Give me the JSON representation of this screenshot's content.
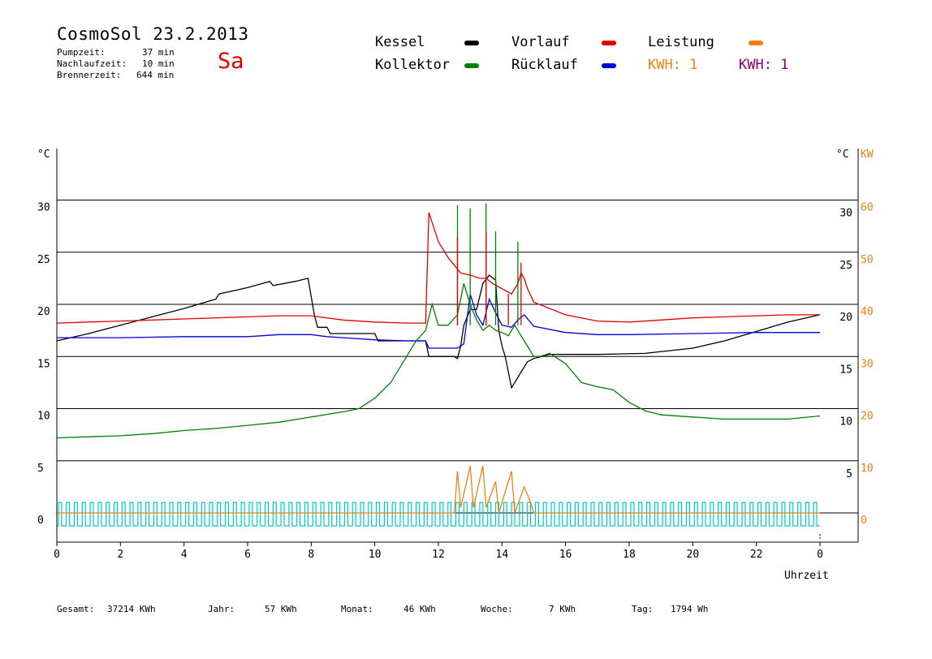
{
  "header": {
    "title": "CosmoSol 23.2.2013",
    "day": "Sa",
    "stats": [
      {
        "label": "Pumpzeit:",
        "value": "37 min"
      },
      {
        "label": "Nachlaufzeit:",
        "value": "10 min"
      },
      {
        "label": "Brennerzeit:",
        "value": "644 min"
      }
    ]
  },
  "legend": {
    "items": [
      {
        "label": "Kessel",
        "color": "#000000"
      },
      {
        "label": "Vorlauf",
        "color": "#e00000"
      },
      {
        "label": "Leistung",
        "color": "#f08010"
      },
      {
        "label": "Kollektor",
        "color": "#008000"
      },
      {
        "label": "Rücklauf",
        "color": "#0000e0"
      }
    ],
    "kwh_orange": "KWH: 1",
    "kwh_purple": "KWH: 1",
    "kwh_orange_color": "#f08010",
    "kwh_purple_color": "#800080"
  },
  "axes": {
    "y_left_unit": "°C",
    "y_right_unit": "°C",
    "y_right2_unit": "KW",
    "x_label": "Uhrzeit",
    "y_ticks": [
      0,
      5,
      10,
      15,
      20,
      25,
      30
    ],
    "kw_ticks": [
      0,
      10,
      20,
      30,
      40,
      50,
      60
    ],
    "x_ticks": [
      "0",
      "2",
      "4",
      "6",
      "8",
      "10",
      "12",
      "14",
      "16",
      "18",
      "20",
      "22",
      "0"
    ]
  },
  "footer": [
    {
      "label": "Gesamt:",
      "value": "37214 KWh"
    },
    {
      "label": "Jahr:",
      "value": "57 KWh"
    },
    {
      "label": "Monat:",
      "value": "46 KWh"
    },
    {
      "label": "Woche:",
      "value": "7 KWh"
    },
    {
      "label": "Tag:",
      "value": "1794 Wh"
    }
  ],
  "chart_data": {
    "type": "line",
    "x_unit": "hour",
    "xlim": [
      0,
      24
    ],
    "ylim": [
      0,
      35
    ],
    "y2lim": [
      0,
      70
    ],
    "grid": true,
    "legend_position": "top",
    "series": [
      {
        "name": "Kessel",
        "color": "#000000",
        "points": [
          [
            0,
            16.5
          ],
          [
            1,
            17.2
          ],
          [
            2,
            18.0
          ],
          [
            3,
            18.8
          ],
          [
            4,
            19.6
          ],
          [
            5,
            20.5
          ],
          [
            5.1,
            21.0
          ],
          [
            6,
            21.6
          ],
          [
            6.7,
            22.2
          ],
          [
            6.8,
            21.8
          ],
          [
            7.5,
            22.2
          ],
          [
            7.9,
            22.5
          ],
          [
            8.1,
            19.0
          ],
          [
            8.2,
            17.8
          ],
          [
            8.5,
            17.8
          ],
          [
            8.6,
            17.2
          ],
          [
            10,
            17.2
          ],
          [
            10.1,
            16.5
          ],
          [
            11.3,
            16.5
          ],
          [
            11.6,
            16.5
          ],
          [
            11.7,
            15.0
          ],
          [
            12.5,
            15.0
          ],
          [
            12.6,
            14.8
          ],
          [
            12.7,
            16.0
          ],
          [
            12.8,
            18.0
          ],
          [
            13.0,
            19.5
          ],
          [
            13.2,
            19.5
          ],
          [
            13.4,
            22.0
          ],
          [
            13.6,
            22.8
          ],
          [
            13.8,
            22.3
          ],
          [
            13.9,
            17.5
          ],
          [
            14.0,
            16.0
          ],
          [
            14.1,
            15.0
          ],
          [
            14.2,
            13.5
          ],
          [
            14.3,
            12.0
          ],
          [
            14.5,
            13.0
          ],
          [
            14.6,
            13.5
          ],
          [
            14.8,
            14.5
          ],
          [
            15.0,
            14.8
          ],
          [
            15.5,
            15.2
          ],
          [
            17,
            15.2
          ],
          [
            18.5,
            15.3
          ],
          [
            20,
            15.8
          ],
          [
            21,
            16.5
          ],
          [
            22,
            17.4
          ],
          [
            23,
            18.3
          ],
          [
            24,
            19.0
          ]
        ]
      },
      {
        "name": "Vorlauf",
        "color": "#e00000",
        "points": [
          [
            0,
            18.2
          ],
          [
            1,
            18.3
          ],
          [
            2,
            18.4
          ],
          [
            3,
            18.5
          ],
          [
            4,
            18.6
          ],
          [
            5,
            18.7
          ],
          [
            6,
            18.8
          ],
          [
            7,
            18.9
          ],
          [
            8,
            18.9
          ],
          [
            9,
            18.5
          ],
          [
            10,
            18.3
          ],
          [
            11,
            18.2
          ],
          [
            11.6,
            18.2
          ],
          [
            11.7,
            28.8
          ],
          [
            12,
            26.0
          ],
          [
            12.3,
            24.5
          ],
          [
            12.7,
            23.0
          ],
          [
            13,
            22.8
          ],
          [
            13.3,
            22.5
          ],
          [
            13.5,
            22.5
          ],
          [
            13.7,
            22.0
          ],
          [
            14,
            21.5
          ],
          [
            14.3,
            21.0
          ],
          [
            14.5,
            22.0
          ],
          [
            14.6,
            23.0
          ],
          [
            14.7,
            22.5
          ],
          [
            14.8,
            21.5
          ],
          [
            15,
            20.2
          ],
          [
            16,
            19.0
          ],
          [
            17,
            18.4
          ],
          [
            18,
            18.3
          ],
          [
            19,
            18.5
          ],
          [
            20,
            18.7
          ],
          [
            21,
            18.8
          ],
          [
            22,
            18.9
          ],
          [
            23,
            19.0
          ],
          [
            24,
            19.0
          ]
        ]
      },
      {
        "name": "Rücklauf",
        "color": "#0000e0",
        "points": [
          [
            0,
            16.8
          ],
          [
            2,
            16.8
          ],
          [
            4,
            16.9
          ],
          [
            6,
            16.9
          ],
          [
            7,
            17.1
          ],
          [
            8,
            17.1
          ],
          [
            8.5,
            16.9
          ],
          [
            9,
            16.8
          ],
          [
            10,
            16.6
          ],
          [
            11,
            16.5
          ],
          [
            11.6,
            16.5
          ],
          [
            11.7,
            15.8
          ],
          [
            12,
            15.8
          ],
          [
            12.6,
            15.8
          ],
          [
            12.8,
            16.2
          ],
          [
            13,
            21.0
          ],
          [
            13.2,
            19.0
          ],
          [
            13.4,
            18.0
          ],
          [
            13.6,
            20.5
          ],
          [
            13.8,
            19.2
          ],
          [
            14,
            18.0
          ],
          [
            14.3,
            17.8
          ],
          [
            14.5,
            18.5
          ],
          [
            14.7,
            19.0
          ],
          [
            15,
            17.9
          ],
          [
            16,
            17.3
          ],
          [
            17,
            17.1
          ],
          [
            18,
            17.1
          ],
          [
            20,
            17.2
          ],
          [
            22,
            17.3
          ],
          [
            24,
            17.3
          ]
        ]
      },
      {
        "name": "Kollektor",
        "color": "#008000",
        "points": [
          [
            0,
            7.2
          ],
          [
            1,
            7.3
          ],
          [
            2,
            7.4
          ],
          [
            3,
            7.6
          ],
          [
            4,
            7.9
          ],
          [
            5,
            8.1
          ],
          [
            6,
            8.4
          ],
          [
            7,
            8.7
          ],
          [
            8,
            9.2
          ],
          [
            9,
            9.7
          ],
          [
            9.5,
            10.0
          ],
          [
            10,
            11.0
          ],
          [
            10.5,
            12.5
          ],
          [
            11,
            15.0
          ],
          [
            11.3,
            16.5
          ],
          [
            11.6,
            17.5
          ],
          [
            11.8,
            20.0
          ],
          [
            12,
            18.0
          ],
          [
            12.3,
            18.0
          ],
          [
            12.6,
            19.0
          ],
          [
            12.8,
            22.0
          ],
          [
            13,
            20.0
          ],
          [
            13.2,
            18.5
          ],
          [
            13.4,
            17.5
          ],
          [
            13.6,
            18.0
          ],
          [
            13.8,
            17.5
          ],
          [
            14,
            17.3
          ],
          [
            14.2,
            17.0
          ],
          [
            14.4,
            18.0
          ],
          [
            14.6,
            17.0
          ],
          [
            14.8,
            16.0
          ],
          [
            15,
            15.0
          ],
          [
            15.2,
            15.0
          ],
          [
            15.5,
            15.3
          ],
          [
            16,
            14.3
          ],
          [
            16.5,
            12.5
          ],
          [
            17,
            12.1
          ],
          [
            17.5,
            11.8
          ],
          [
            18,
            10.6
          ],
          [
            18.5,
            9.8
          ],
          [
            19,
            9.4
          ],
          [
            20,
            9.2
          ],
          [
            21,
            9.0
          ],
          [
            22,
            9.0
          ],
          [
            23,
            9.0
          ],
          [
            24,
            9.3
          ]
        ]
      }
    ],
    "spikes": [
      {
        "series": "Kollektor",
        "x": [
          12.6,
          13.0,
          13.5,
          13.8,
          14.5
        ],
        "y": [
          29.5,
          29.2,
          29.7,
          27.0,
          26.0
        ]
      },
      {
        "series": "Vorlauf",
        "x": [
          12.6,
          13.5,
          14.2,
          14.6
        ],
        "y": [
          26.5,
          27.0,
          21.0,
          24.0
        ]
      }
    ],
    "power_kw": {
      "name": "Leistung",
      "color": "#f08010",
      "points": [
        [
          0,
          0
        ],
        [
          12.5,
          0
        ],
        [
          12.6,
          8
        ],
        [
          12.7,
          1
        ],
        [
          13.0,
          9
        ],
        [
          13.1,
          1
        ],
        [
          13.4,
          9
        ],
        [
          13.5,
          1
        ],
        [
          13.8,
          6
        ],
        [
          13.9,
          0
        ],
        [
          14.3,
          8
        ],
        [
          14.4,
          0
        ],
        [
          14.7,
          5
        ],
        [
          14.9,
          2
        ],
        [
          15.0,
          0
        ],
        [
          24,
          0
        ]
      ]
    },
    "pump_pulses": {
      "name": "Pumpe",
      "color": "#00c8c8",
      "height_celsius": 1,
      "period_h": 0.25
    }
  }
}
